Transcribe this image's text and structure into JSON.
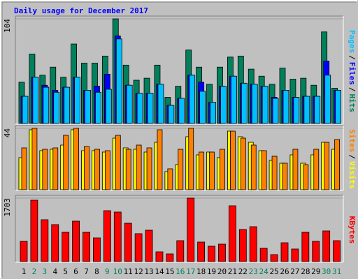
{
  "chart_data": [
    {
      "type": "bar",
      "title": "Daily usage for December 2017",
      "ylim": [
        0,
        104
      ],
      "yticks": [
        104
      ],
      "legend_separator": "/",
      "series": [
        {
          "name": "Hits",
          "color": "#00805c",
          "values": [
            41,
            69,
            48,
            56,
            46,
            79,
            60,
            60,
            67,
            104,
            58,
            43,
            45,
            58,
            26,
            37,
            73,
            56,
            39,
            56,
            66,
            67,
            54,
            47,
            39,
            55,
            44,
            45,
            38,
            91,
            35
          ]
        },
        {
          "name": "Files",
          "color": "#0000ff",
          "values": [
            27,
            46,
            38,
            33,
            36,
            46,
            33,
            37,
            49,
            87,
            38,
            30,
            30,
            39,
            18,
            25,
            48,
            41,
            21,
            37,
            47,
            40,
            39,
            37,
            26,
            33,
            26,
            27,
            27,
            62,
            33
          ]
        },
        {
          "name": "Pages",
          "color": "#00c0ff",
          "values": [
            27,
            46,
            36,
            31,
            36,
            46,
            33,
            31,
            34,
            84,
            38,
            30,
            30,
            39,
            18,
            25,
            48,
            32,
            21,
            37,
            47,
            40,
            39,
            37,
            25,
            33,
            26,
            27,
            27,
            48,
            33
          ]
        }
      ]
    },
    {
      "type": "bar",
      "ylim": [
        0,
        44
      ],
      "yticks": [
        44
      ],
      "legend_separator": "/",
      "series": [
        {
          "name": "Visits",
          "color": "#ffff00",
          "values": [
            23,
            43,
            28,
            29,
            32,
            43,
            28,
            28,
            27,
            37,
            30,
            29,
            27,
            34,
            13,
            18,
            38,
            25,
            27,
            23,
            42,
            38,
            34,
            28,
            21,
            19,
            25,
            19,
            25,
            34,
            29
          ]
        },
        {
          "name": "Sites",
          "color": "#ff8000",
          "values": [
            30,
            44,
            29,
            30,
            39,
            44,
            31,
            29,
            28,
            39,
            29,
            32,
            30,
            43,
            15,
            29,
            44,
            27,
            27,
            29,
            42,
            37,
            32,
            28,
            24,
            19,
            29,
            18,
            29,
            34,
            36
          ]
        }
      ]
    },
    {
      "type": "bar",
      "ylim": [
        0,
        1703
      ],
      "yticks": [
        1703
      ],
      "categories": [
        "1",
        "2",
        "3",
        "4",
        "5",
        "6",
        "7",
        "8",
        "9",
        "10",
        "11",
        "12",
        "13",
        "14",
        "15",
        "16",
        "17",
        "18",
        "19",
        "20",
        "21",
        "22",
        "23",
        "24",
        "25",
        "26",
        "27",
        "28",
        "29",
        "30",
        "31"
      ],
      "label_colors": [
        "#000000",
        "#00805c",
        "#00805c",
        "#000000",
        "#000000",
        "#000000",
        "#000000",
        "#000000",
        "#00805c",
        "#00805c",
        "#000000",
        "#000000",
        "#000000",
        "#000000",
        "#000000",
        "#00805c",
        "#00805c",
        "#000000",
        "#000000",
        "#000000",
        "#000000",
        "#000000",
        "#00805c",
        "#00805c",
        "#000000",
        "#000000",
        "#000000",
        "#000000",
        "#000000",
        "#00805c",
        "#00805c"
      ],
      "series": [
        {
          "name": "KBytes",
          "color": "#ff0000",
          "values": [
            543,
            1647,
            1123,
            992,
            786,
            1085,
            786,
            636,
            1366,
            1329,
            1029,
            749,
            842,
            262,
            206,
            561,
            1703,
            524,
            412,
            468,
            1497,
            861,
            936,
            356,
            187,
            505,
            337,
            786,
            543,
            823,
            561
          ]
        }
      ]
    }
  ]
}
